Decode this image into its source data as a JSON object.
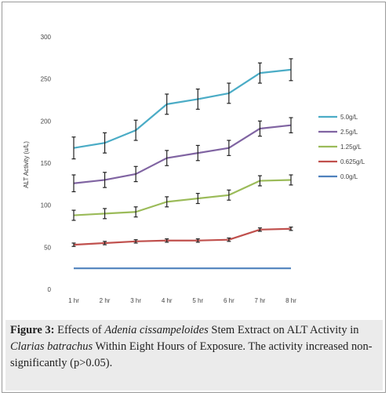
{
  "chart_data": {
    "type": "line",
    "title": "",
    "xlabel": "",
    "ylabel": "ALT Activity (u/L)",
    "ylim": [
      0,
      300
    ],
    "yticks": [
      "0",
      "50",
      "100",
      "150",
      "200",
      "250",
      "300"
    ],
    "categories": [
      "1 hr",
      "2 hr",
      "3 hr",
      "4 hr",
      "5 hr",
      "6 hr",
      "7 hr",
      "8 hr"
    ],
    "grid": false,
    "legend_position": "right",
    "series": [
      {
        "name": "5.0g/L",
        "color": "#4bacc6",
        "values": [
          168,
          174,
          189,
          220,
          226,
          233,
          257,
          261
        ],
        "errors": [
          13,
          12,
          12,
          12,
          12,
          12,
          12,
          13
        ]
      },
      {
        "name": "2.5g/L",
        "color": "#8064a2",
        "values": [
          126,
          130,
          137,
          156,
          162,
          168,
          191,
          195
        ],
        "errors": [
          10,
          9,
          9,
          9,
          9,
          9,
          9,
          9
        ]
      },
      {
        "name": "1.25g/L",
        "color": "#9bbb59",
        "values": [
          88,
          90,
          92,
          104,
          108,
          112,
          129,
          130
        ],
        "errors": [
          6,
          6,
          6,
          6,
          6,
          6,
          6,
          6
        ]
      },
      {
        "name": "0.625g/L",
        "color": "#c0504d",
        "values": [
          53,
          55,
          57,
          58,
          58,
          59,
          71,
          72
        ],
        "errors": [
          2,
          2,
          2,
          2,
          2,
          2,
          2,
          2
        ]
      },
      {
        "name": "0.0g/L",
        "color": "#4f81bd",
        "values": [
          25,
          25,
          25,
          25,
          25,
          25,
          25,
          25
        ],
        "errors": [
          0,
          0,
          0,
          0,
          0,
          0,
          0,
          0
        ]
      }
    ]
  },
  "caption": {
    "label": "Figure 3:",
    "text_1": " Effects of ",
    "species_1": "Adenia cissampeloides",
    "text_2": " Stem Extract on ALT Activity in ",
    "species_2": "Clarias batrachus",
    "text_3": " Within Eight Hours of Exposure. The activity increased non- significantly (p>0.05)."
  }
}
